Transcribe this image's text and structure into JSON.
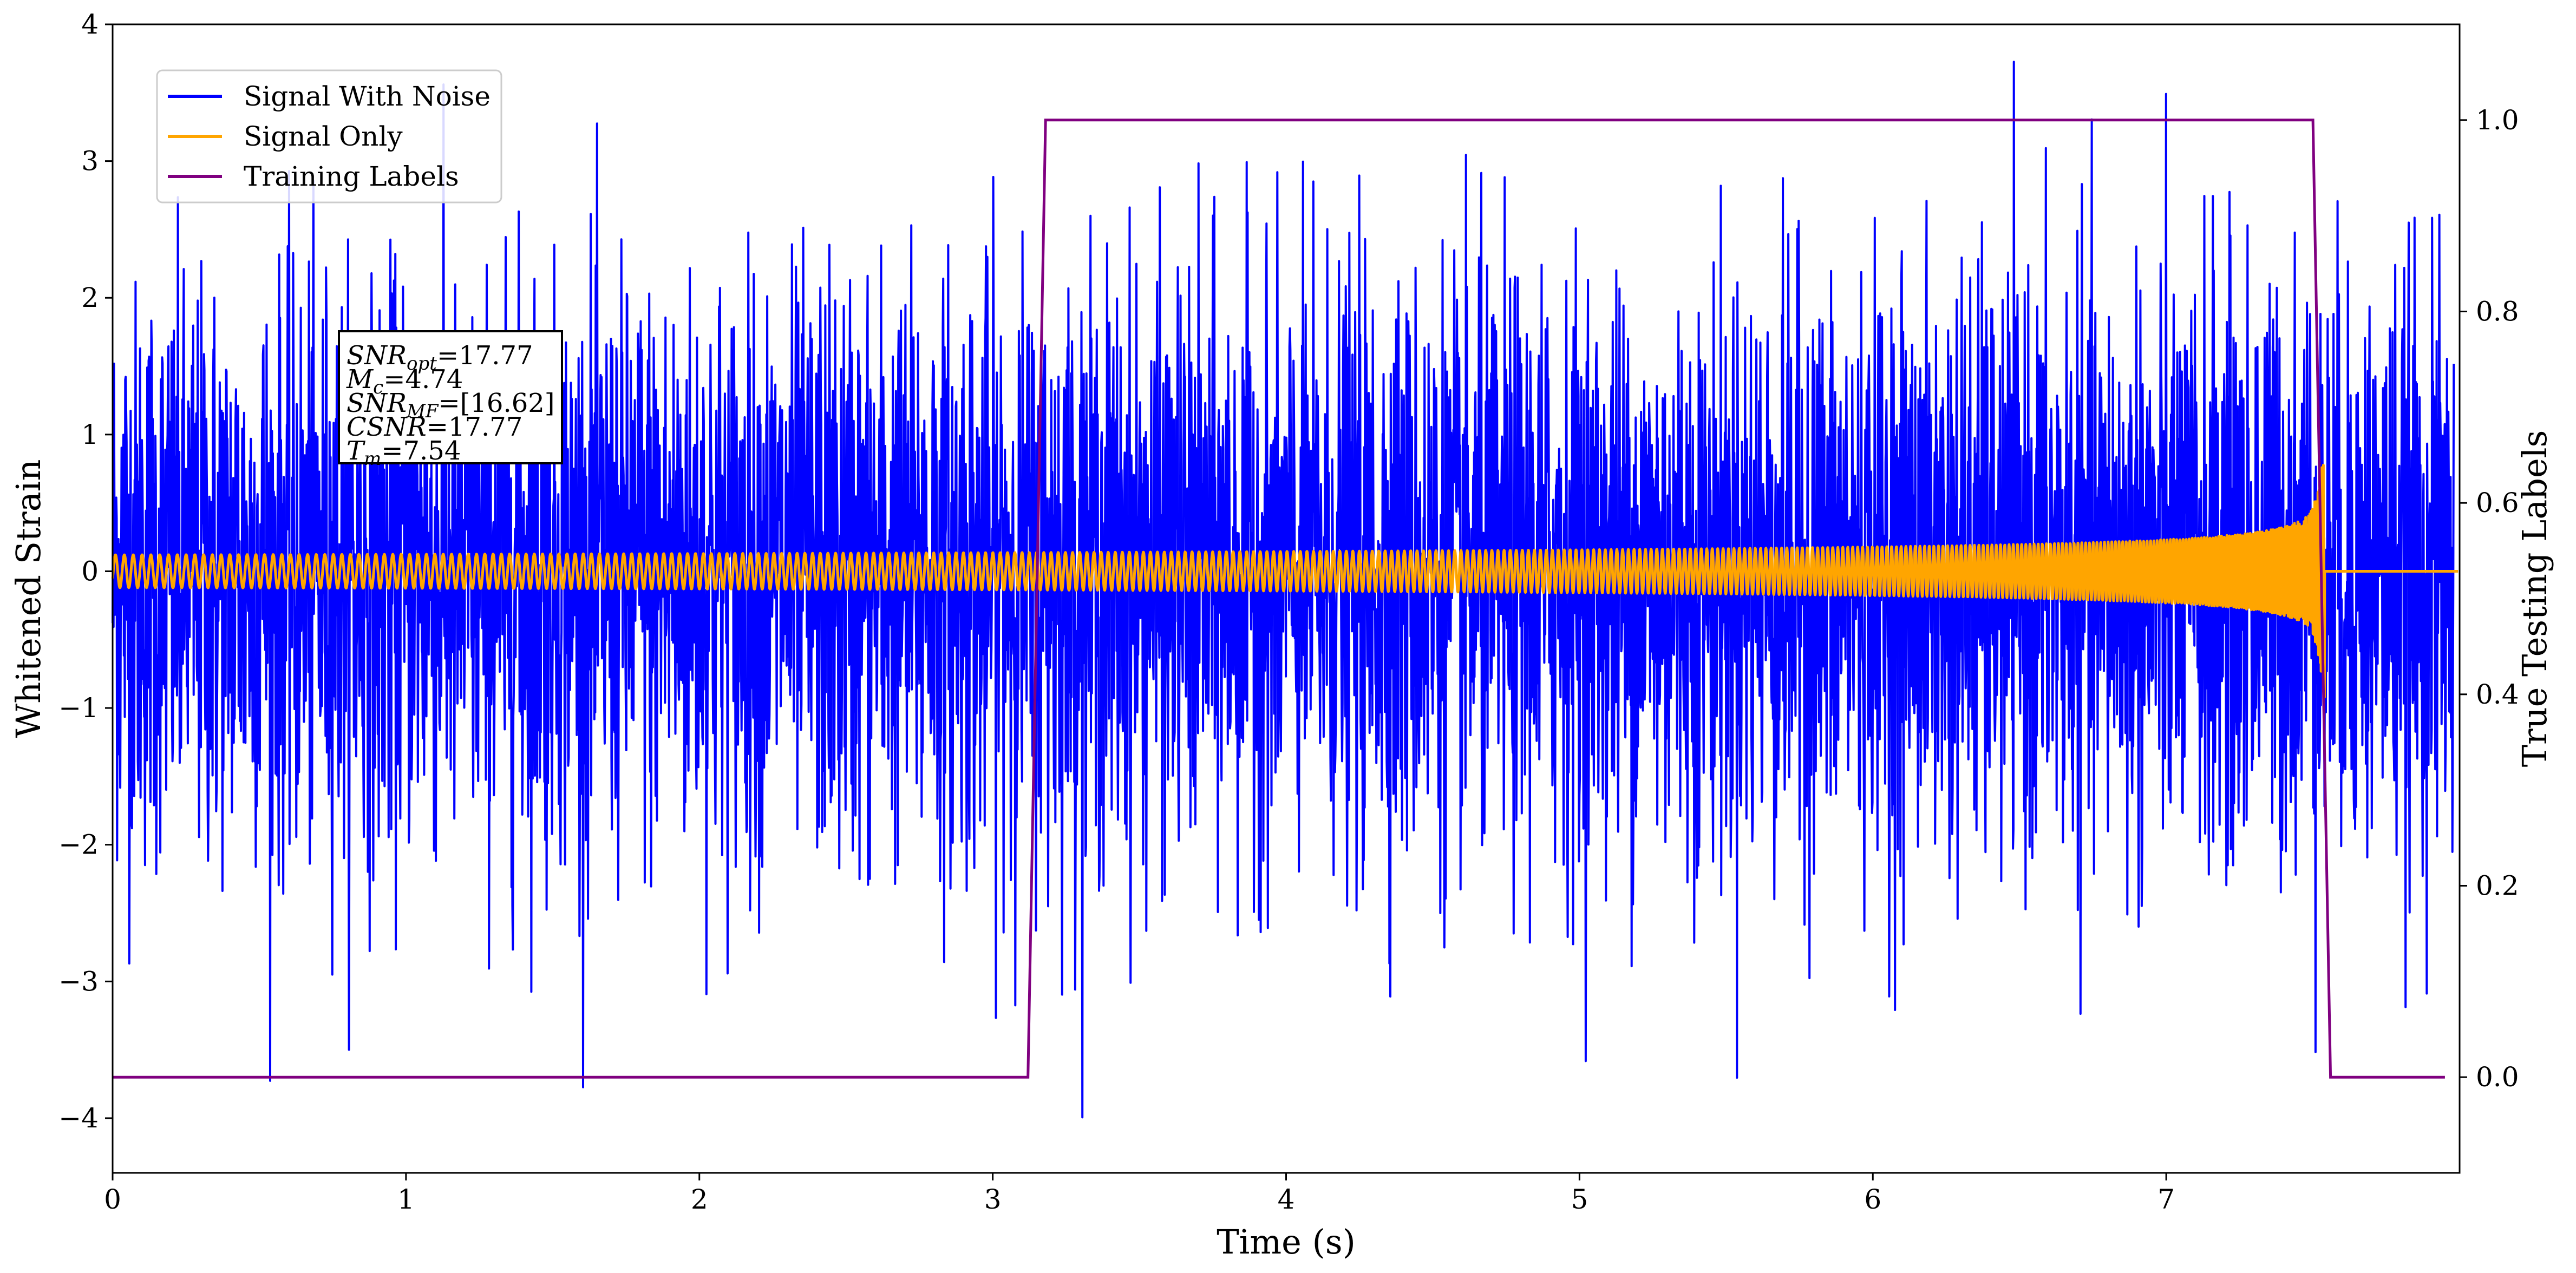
{
  "chart_data": {
    "type": "line",
    "xlabel": "Time (s)",
    "ylabel": "Whitened Strain",
    "y2label": "True Testing Labels",
    "xlim": [
      0,
      8.0
    ],
    "ylim": [
      -4.4,
      4.0
    ],
    "y2lim": [
      -0.1,
      1.1
    ],
    "x_ticks": [
      "0",
      "1",
      "2",
      "3",
      "4",
      "5",
      "6",
      "7"
    ],
    "y_ticks": [
      "4",
      "3",
      "2",
      "1",
      "0",
      "−1",
      "−2",
      "−3",
      "−4"
    ],
    "y2_ticks": [
      "1.0",
      "0.8",
      "0.6",
      "0.4",
      "0.2",
      "0.0"
    ],
    "legend_position": "top-left",
    "series": [
      {
        "name": "Signal With Noise",
        "color": "#0000ff",
        "axis": "left",
        "description_points": {
          "noise_peak_max": 3.63,
          "noise_peak_min": -4.03
        }
      },
      {
        "name": "Signal Only",
        "color": "#ffa500",
        "axis": "left",
        "chirp": {
          "start_amplitude": 0.12,
          "peak_amplitude": 1.15,
          "merger_time": 7.54,
          "end_time": 8.0
        }
      },
      {
        "name": "Training Labels",
        "color": "#800080",
        "axis": "right",
        "x": [
          0,
          3.12,
          3.18,
          7.5,
          7.56,
          7.95
        ],
        "y": [
          0,
          0,
          1,
          1,
          0,
          0
        ]
      }
    ],
    "annotation": {
      "lines": [
        {
          "var": "SNR",
          "sub": "opt",
          "value": "=17.77"
        },
        {
          "var": "M",
          "sub": "c",
          "value": "=4.74"
        },
        {
          "var": "SNR",
          "sub": "MF",
          "value": "=[16.62]"
        },
        {
          "var": "CSNR",
          "sub": "",
          "value": "=17.77"
        },
        {
          "var": "T",
          "sub": "m",
          "value": "=7.54"
        }
      ]
    }
  }
}
